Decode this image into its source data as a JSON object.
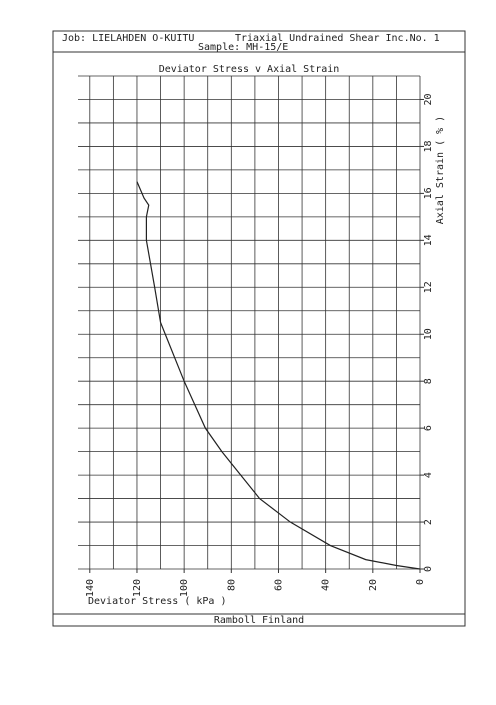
{
  "header": {
    "job": "Job: LIELAHDEN O-KUITU",
    "test": "Triaxial Undrained Shear Inc.No. 1",
    "sample": "Sample: MH-15/E"
  },
  "footer": "Ramboll Finland",
  "chart_data": {
    "type": "line",
    "title": "Deviator Stress v Axial Strain",
    "x_label": "Deviator Stress ( kPa )",
    "y_label": "Axial Strain ( % )",
    "x": [
      0,
      10,
      23,
      38,
      55,
      68,
      76,
      84,
      91,
      100,
      108,
      110,
      112.5,
      116,
      116,
      115,
      117,
      120
    ],
    "series": [
      {
        "color": "#222222",
        "values": [
          0,
          0.15,
          0.4,
          1,
          2,
          3,
          4,
          5,
          6,
          8,
          10,
          10.5,
          12,
          14,
          15,
          15.5,
          15.8,
          16.5
        ]
      }
    ],
    "xlim": [
      145,
      0
    ],
    "xticks": [
      140,
      120,
      100,
      80,
      60,
      40,
      20,
      0
    ],
    "xgrid": [
      140,
      130,
      120,
      110,
      100,
      90,
      80,
      70,
      60,
      50,
      40,
      30,
      20,
      10,
      0
    ],
    "ylim": [
      0,
      21
    ],
    "yticks": [
      0,
      2,
      4,
      6,
      8,
      10,
      12,
      14,
      16,
      18,
      20
    ],
    "ygrid": [
      0,
      1,
      2,
      3,
      4,
      5,
      6,
      7,
      8,
      9,
      10,
      11,
      12,
      13,
      14,
      15,
      16,
      17,
      18,
      19,
      20,
      21
    ],
    "grid": true
  }
}
